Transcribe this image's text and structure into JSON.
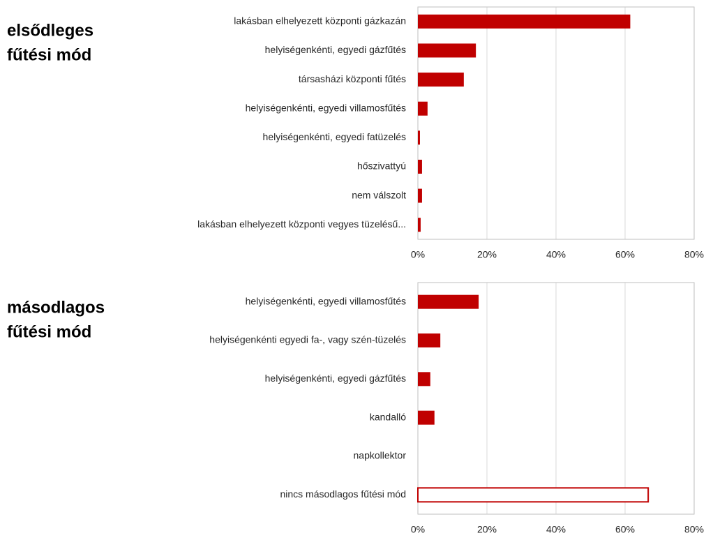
{
  "chart_data": [
    {
      "type": "bar",
      "orientation": "horizontal",
      "title": [
        "elsődleges",
        "fűtési mód"
      ],
      "categories": [
        "lakásban elhelyezett központi gázkazán",
        "helyiségenkénti, egyedi gázfűtés",
        "társasházi központi fűtés",
        "helyiségenkénti, egyedi villamosfűtés",
        "helyiségenkénti, egyedi fatüzelés",
        "hőszivattyú",
        "nem válszolt",
        "lakásban elhelyezett központi vegyes tüzelésű..."
      ],
      "values": [
        61.5,
        16.8,
        13.3,
        2.8,
        0.6,
        1.2,
        1.2,
        0.8
      ],
      "bar_styles": [
        "solid",
        "solid",
        "solid",
        "solid",
        "solid",
        "solid",
        "solid",
        "solid"
      ],
      "color": "#c00000",
      "xlim": [
        0,
        80
      ],
      "xticks": [
        {
          "value": 0,
          "label": "0%"
        },
        {
          "value": 20,
          "label": "20%"
        },
        {
          "value": 40,
          "label": "40%"
        },
        {
          "value": 60,
          "label": "60%"
        },
        {
          "value": 80,
          "label": "80%"
        }
      ],
      "grid": true
    },
    {
      "type": "bar",
      "orientation": "horizontal",
      "title": [
        "másodlagos",
        "fűtési mód"
      ],
      "categories": [
        "helyiségenkénti, egyedi villamosfűtés",
        "helyiségenkénti egyedi fa-, vagy szén-tüzelés",
        "helyiségenkénti, egyedi gázfűtés",
        "kandalló",
        "napkollektor",
        "nincs másodlagos fűtési mód"
      ],
      "values": [
        17.6,
        6.5,
        3.6,
        4.8,
        0,
        66.7
      ],
      "bar_styles": [
        "solid",
        "solid",
        "solid",
        "solid",
        "solid",
        "outline"
      ],
      "color": "#c00000",
      "xlim": [
        0,
        80
      ],
      "xticks": [
        {
          "value": 0,
          "label": "0%"
        },
        {
          "value": 20,
          "label": "20%"
        },
        {
          "value": 40,
          "label": "40%"
        },
        {
          "value": 60,
          "label": "60%"
        },
        {
          "value": 80,
          "label": "80%"
        }
      ],
      "grid": true
    }
  ]
}
